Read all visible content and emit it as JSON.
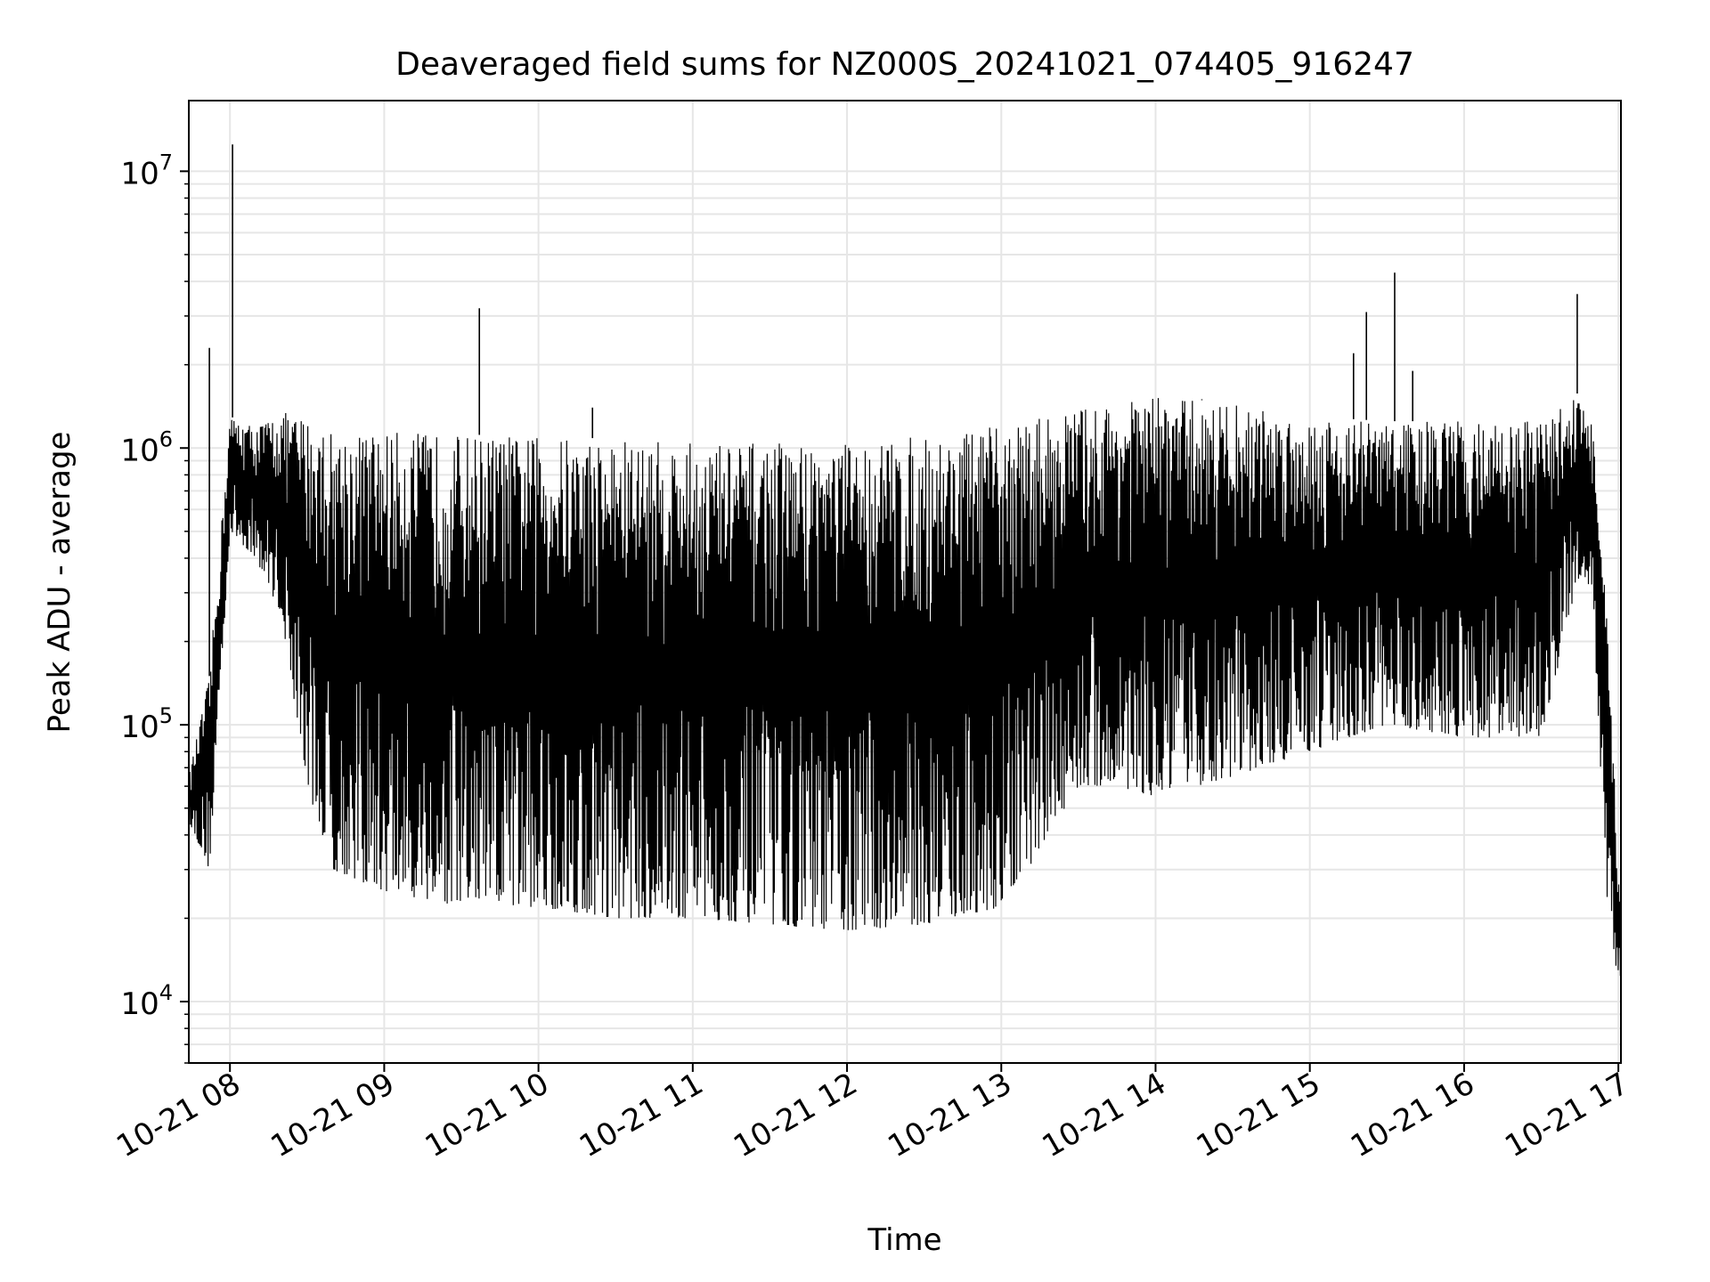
{
  "chart_data": {
    "type": "line",
    "title": "Deaveraged field sums for NZ000S_20241021_074405_916247",
    "xlabel": "Time",
    "ylabel": "Peak ADU - average",
    "yscale": "log",
    "ylim": [
      6000,
      18000000
    ],
    "xlim": [
      "2024-10-21 07:44",
      "2024-10-21 17:01"
    ],
    "grid": true,
    "line_color": "#000000",
    "x_ticks": [
      {
        "value": "2024-10-21 08:00",
        "label": "10-21 08"
      },
      {
        "value": "2024-10-21 09:00",
        "label": "10-21 09"
      },
      {
        "value": "2024-10-21 10:00",
        "label": "10-21 10"
      },
      {
        "value": "2024-10-21 11:00",
        "label": "10-21 11"
      },
      {
        "value": "2024-10-21 12:00",
        "label": "10-21 12"
      },
      {
        "value": "2024-10-21 13:00",
        "label": "10-21 13"
      },
      {
        "value": "2024-10-21 14:00",
        "label": "10-21 14"
      },
      {
        "value": "2024-10-21 15:00",
        "label": "10-21 15"
      },
      {
        "value": "2024-10-21 16:00",
        "label": "10-21 16"
      },
      {
        "value": "2024-10-21 17:00",
        "label": "10-21 17"
      }
    ],
    "y_ticks": [
      {
        "value": 10000,
        "base": "10",
        "exp": "4"
      },
      {
        "value": 100000,
        "base": "10",
        "exp": "5"
      },
      {
        "value": 1000000,
        "base": "10",
        "exp": "6"
      },
      {
        "value": 10000000,
        "base": "10",
        "exp": "7"
      }
    ],
    "series": [
      {
        "envelope_x": [
          "2024-10-21 07:44",
          "2024-10-21 07:52",
          "2024-10-21 08:00",
          "2024-10-21 08:10",
          "2024-10-21 08:20",
          "2024-10-21 08:30",
          "2024-10-21 08:40",
          "2024-10-21 09:00",
          "2024-10-21 09:30",
          "2024-10-21 10:00",
          "2024-10-21 10:30",
          "2024-10-21 11:00",
          "2024-10-21 11:30",
          "2024-10-21 12:00",
          "2024-10-21 12:30",
          "2024-10-21 13:00",
          "2024-10-21 13:15",
          "2024-10-21 13:30",
          "2024-10-21 13:45",
          "2024-10-21 14:00",
          "2024-10-21 14:30",
          "2024-10-21 15:00",
          "2024-10-21 15:30",
          "2024-10-21 16:00",
          "2024-10-21 16:30",
          "2024-10-21 16:45",
          "2024-10-21 16:50",
          "2024-10-21 16:55",
          "2024-10-21 17:01"
        ],
        "upper": [
          65000,
          150000,
          1300000,
          1200000,
          1350000,
          1300000,
          1150000,
          1150000,
          1120000,
          1100000,
          1080000,
          1050000,
          1050000,
          1050000,
          1100000,
          1200000,
          1300000,
          1400000,
          1450000,
          1550000,
          1450000,
          1300000,
          1250000,
          1250000,
          1250000,
          1600000,
          1200000,
          300000,
          20000
        ],
        "lower": [
          45000,
          30000,
          500000,
          400000,
          250000,
          60000,
          30000,
          25000,
          22000,
          22000,
          20000,
          20000,
          19000,
          18000,
          19000,
          22000,
          35000,
          60000,
          60000,
          55000,
          65000,
          80000,
          100000,
          90000,
          90000,
          350000,
          300000,
          25000,
          10000
        ]
      }
    ],
    "spikes": [
      {
        "x": "2024-10-21 07:52",
        "y": 2300000
      },
      {
        "x": "2024-10-21 08:01",
        "y": 12500000
      },
      {
        "x": "2024-10-21 09:37",
        "y": 3200000
      },
      {
        "x": "2024-10-21 10:21",
        "y": 1400000
      },
      {
        "x": "2024-10-21 14:18",
        "y": 1500000
      },
      {
        "x": "2024-10-21 15:17",
        "y": 2200000
      },
      {
        "x": "2024-10-21 15:22",
        "y": 3100000
      },
      {
        "x": "2024-10-21 15:33",
        "y": 4300000
      },
      {
        "x": "2024-10-21 15:40",
        "y": 1900000
      },
      {
        "x": "2024-10-21 16:44",
        "y": 3600000
      }
    ]
  }
}
